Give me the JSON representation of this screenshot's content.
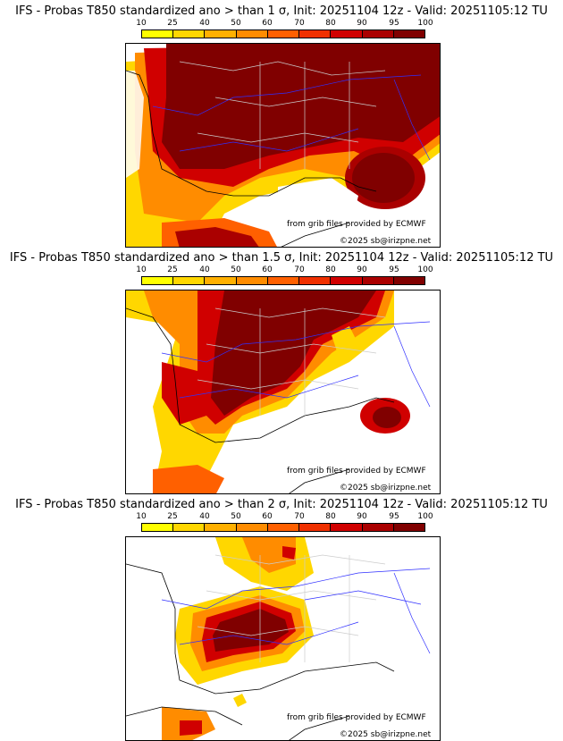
{
  "panels": [
    {
      "title": "IFS - Probas T850  standardized ano > than 1 σ, Init: 20251104 12z - Valid: 20251105:12 TU",
      "threshold": "1 σ"
    },
    {
      "title": "IFS - Probas T850  standardized ano > than 1.5 σ, Init: 20251104 12z - Valid: 20251105:12 TU",
      "threshold": "1.5 σ"
    },
    {
      "title": "IFS - Probas T850  standardized ano > than 2 σ, Init: 20251104 12z - Valid: 20251105:12 TU",
      "threshold": "2 σ"
    }
  ],
  "colorbar": {
    "ticks": [
      "10",
      "25",
      "40",
      "50",
      "60",
      "70",
      "80",
      "90",
      "95",
      "100"
    ],
    "colors": [
      "#ffff00",
      "#ffd700",
      "#ffb000",
      "#ff8c00",
      "#ff6000",
      "#f03000",
      "#d00000",
      "#aa0000",
      "#800000"
    ]
  },
  "credits": {
    "source": "from grib files provided by ECMWF",
    "copyright": "©2025 sb@irizpne.net"
  }
}
